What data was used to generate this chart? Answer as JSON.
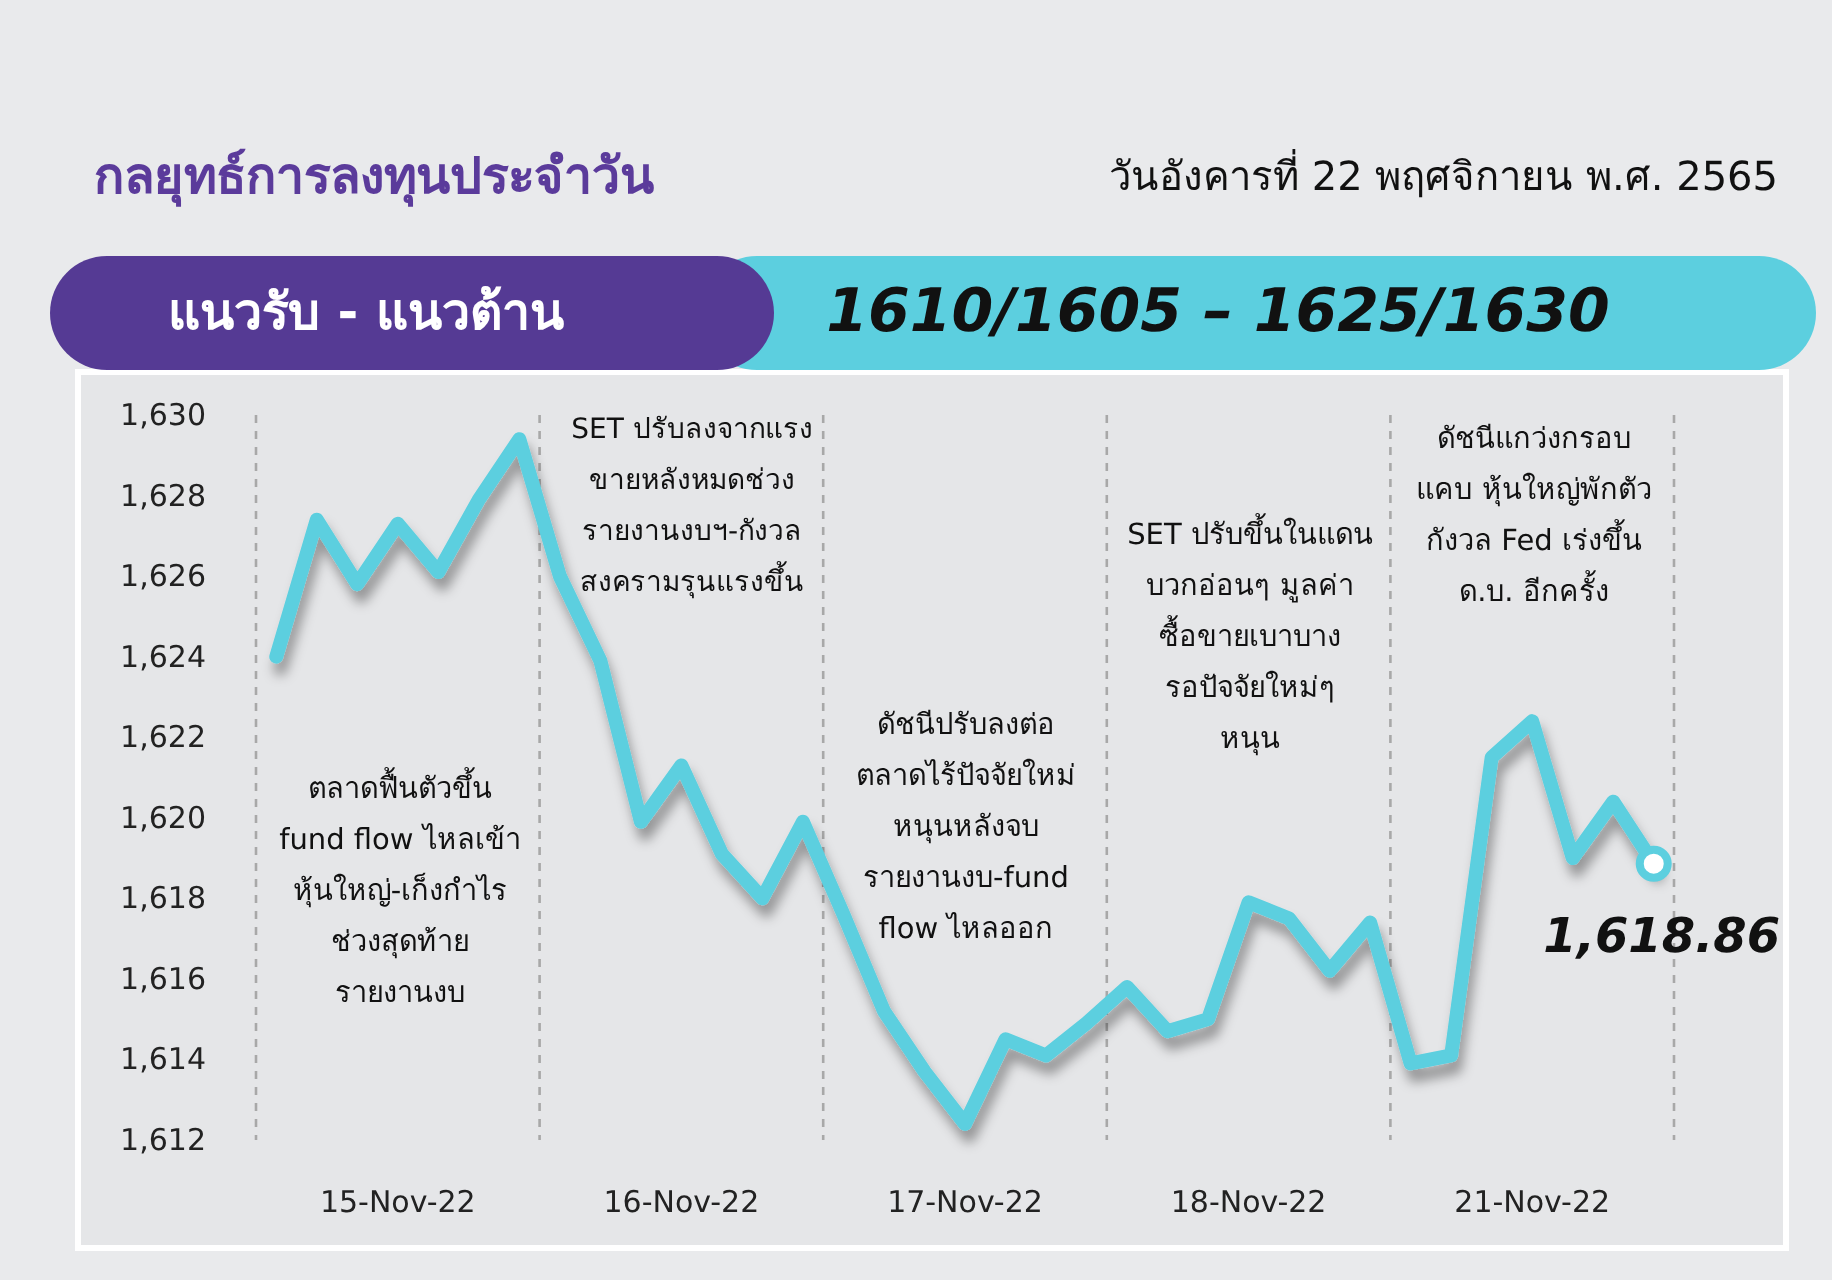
{
  "chart_data": {
    "type": "line",
    "title": "กลยุทธ์การลงทุนประจำวัน",
    "subtitle": "วันอังคารที่ 22 พฤศจิกายน พ.ศ. 2565",
    "annotations": [
      "แนวรับ - แนวต้าน",
      "1610/1605 – 1625/1630",
      "ตลาดฟื้นตัวขึ้น\nfund flow ไหลเข้า\nหุ้นใหญ่-เก็งกำไร\nช่วงสุดท้าย\nรายงานงบ",
      "SET ปรับลงจากแรง\nขายหลังหมดช่วง\nรายงานงบฯ-กังวล\nสงครามรุนแรงขึ้น",
      "ดัชนีปรับลงต่อ\nตลาดไร้ปัจจัยใหม่\nหนุนหลังจบ\nรายงานงบ-fund\nflow ไหลออก",
      "SET ปรับขึ้นในแดน\nบวกอ่อนๆ มูลค่า\nซื้อขายเบาบาง\nรอปัจจัยใหม่ๆ\nหนุน",
      "ดัชนีแกว่งกรอบ\nแคบ หุ้นใหญ่พักตัว\nกังวล Fed เร่งขึ้น\nด.บ. อีกครั้ง"
    ],
    "categories": [
      null,
      null,
      null,
      "15-Nov-22",
      null,
      null,
      null,
      null,
      null,
      null,
      "16-Nov-22",
      null,
      null,
      null,
      null,
      null,
      null,
      "17-Nov-22",
      null,
      null,
      null,
      null,
      null,
      null,
      "18-Nov-22",
      null,
      null,
      null,
      null,
      null,
      null,
      "21-Nov-22",
      null,
      null,
      null
    ],
    "ylim": [
      1612,
      1630
    ],
    "yticks": [
      {
        "value": 1612,
        "label": "1,612"
      },
      {
        "value": 1614,
        "label": "1,614"
      },
      {
        "value": 1616,
        "label": "1,616"
      },
      {
        "value": 1618,
        "label": "1,618"
      },
      {
        "value": 1620,
        "label": "1,620"
      },
      {
        "value": 1622,
        "label": "1,622"
      },
      {
        "value": 1624,
        "label": "1,624"
      },
      {
        "value": 1626,
        "label": "1,626"
      },
      {
        "value": 1628,
        "label": "1,628"
      },
      {
        "value": 1630,
        "label": "1,630"
      }
    ],
    "grid": "x",
    "series": [
      {
        "color": "#5ccfdf",
        "values": [
          1624.0,
          1627.4,
          1625.8,
          1627.3,
          1626.1,
          1627.9,
          1629.4,
          1626.0,
          1623.9,
          1619.9,
          1621.3,
          1619.1,
          1618.0,
          1619.9,
          1617.6,
          1615.2,
          1613.7,
          1612.4,
          1614.5,
          1614.1,
          1614.9,
          1615.8,
          1614.7,
          1615.0,
          1617.9,
          1617.5,
          1616.2,
          1617.4,
          1613.9,
          1614.1,
          1621.5,
          1622.4,
          1619.0,
          1620.4,
          1618.86
        ]
      },
      {
        "type": "scatter",
        "color": "#5ccfdf",
        "marker": "circle",
        "values": [
          null,
          null,
          null,
          null,
          null,
          null,
          null,
          null,
          null,
          null,
          null,
          null,
          null,
          null,
          null,
          null,
          null,
          null,
          null,
          null,
          null,
          null,
          null,
          null,
          null,
          null,
          null,
          null,
          null,
          null,
          null,
          null,
          null,
          null,
          1618.86
        ],
        "value_labels": [
          null,
          null,
          null,
          null,
          null,
          null,
          null,
          null,
          null,
          null,
          null,
          null,
          null,
          null,
          null,
          null,
          null,
          null,
          null,
          null,
          null,
          null,
          null,
          null,
          null,
          null,
          null,
          null,
          null,
          null,
          null,
          null,
          null,
          null,
          "1,618.86"
        ]
      }
    ]
  }
}
